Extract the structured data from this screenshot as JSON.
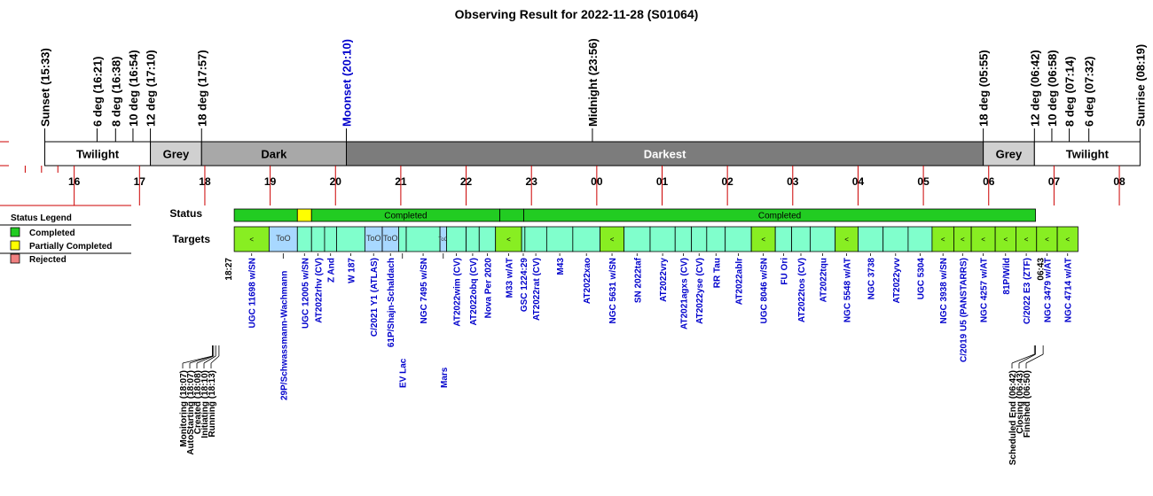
{
  "title": "Observing Result for 2022-11-28 (S01064)",
  "chart_data": {
    "type": "timeline",
    "time_axis": {
      "start": "15:00",
      "end": "08:40",
      "hour_labels": [
        "16",
        "17",
        "18",
        "19",
        "20",
        "21",
        "22",
        "23",
        "00",
        "01",
        "02",
        "03",
        "04",
        "05",
        "06",
        "07",
        "08"
      ]
    },
    "markers": [
      {
        "label": "Sunset (15:33)",
        "time": "15:33",
        "color": "#000000"
      },
      {
        "label": "6 deg (16:21)",
        "time": "16:21",
        "color": "#000000"
      },
      {
        "label": "8 deg (16:38)",
        "time": "16:38",
        "color": "#000000"
      },
      {
        "label": "10 deg (16:54)",
        "time": "16:54",
        "color": "#000000"
      },
      {
        "label": "12 deg (17:10)",
        "time": "17:10",
        "color": "#000000"
      },
      {
        "label": "18 deg (17:57)",
        "time": "17:57",
        "color": "#000000"
      },
      {
        "label": "Moonset (20:10)",
        "time": "20:10",
        "color": "#0000cc"
      },
      {
        "label": "Midnight (23:56)",
        "time": "23:56",
        "color": "#000000"
      },
      {
        "label": "18 deg (05:55)",
        "time": "29:55",
        "color": "#000000"
      },
      {
        "label": "12 deg (06:42)",
        "time": "30:42",
        "color": "#000000"
      },
      {
        "label": "10 deg (06:58)",
        "time": "30:58",
        "color": "#000000"
      },
      {
        "label": "8 deg (07:14)",
        "time": "31:14",
        "color": "#000000"
      },
      {
        "label": "6 deg (07:32)",
        "time": "31:32",
        "color": "#000000"
      },
      {
        "label": "Sunrise (08:19)",
        "time": "32:19",
        "color": "#000000"
      }
    ],
    "sky_bands": [
      {
        "label": "Twilight",
        "start": "15:33",
        "end": "17:10",
        "color": "#ffffff",
        "text_color": "#000000"
      },
      {
        "label": "Grey",
        "start": "17:10",
        "end": "17:57",
        "color": "#d0d0d0",
        "text_color": "#000000"
      },
      {
        "label": "Dark",
        "start": "17:57",
        "end": "20:10",
        "color": "#a8a8a8",
        "text_color": "#000000"
      },
      {
        "label": "Darkest",
        "start": "20:10",
        "end": "29:55",
        "color": "#7c7c7c",
        "text_color": "#ffffff"
      },
      {
        "label": "Grey",
        "start": "29:55",
        "end": "30:42",
        "color": "#d0d0d0",
        "text_color": "#000000"
      },
      {
        "label": "Twilight",
        "start": "30:42",
        "end": "32:19",
        "color": "#ffffff",
        "text_color": "#000000"
      }
    ],
    "status_row_label": "Status",
    "targets_row_label": "Targets",
    "status_segments": [
      {
        "start": "18:27",
        "end": "19:25",
        "status": "Completed",
        "label": ""
      },
      {
        "start": "19:25",
        "end": "19:38",
        "status": "Partially Completed",
        "label": ""
      },
      {
        "start": "19:38",
        "end": "22:31",
        "status": "Completed",
        "label": "Completed"
      },
      {
        "start": "22:31",
        "end": "22:53",
        "status": "Completed",
        "label": ""
      },
      {
        "start": "22:53",
        "end": "30:43",
        "status": "Completed",
        "label": "Completed"
      }
    ],
    "targets": [
      {
        "name": "UGC 11698 w/SN",
        "start": "18:27",
        "end": "18:59",
        "kind": "sn",
        "mark": "<"
      },
      {
        "name": "29P/Schwassmann-Wachmann",
        "start": "18:59",
        "end": "19:25",
        "kind": "too",
        "mark": "ToO",
        "label_pos": "low"
      },
      {
        "name": "UGC 12005 w/SN",
        "start": "19:25",
        "end": "19:38",
        "kind": "normal",
        "mark": ""
      },
      {
        "name": "AT2022rhv (CV)",
        "start": "19:38",
        "end": "19:50",
        "kind": "normal",
        "mark": ""
      },
      {
        "name": "Z And",
        "start": "19:50",
        "end": "20:01",
        "kind": "normal",
        "mark": ""
      },
      {
        "name": "W 187",
        "start": "20:01",
        "end": "20:27",
        "kind": "normal",
        "mark": ""
      },
      {
        "name": "C/2021 Y1 (ATLAS)",
        "start": "20:27",
        "end": "20:43",
        "kind": "too",
        "mark": "ToO"
      },
      {
        "name": "61P/Shajn-Schaldach",
        "start": "20:43",
        "end": "20:58",
        "kind": "too",
        "mark": "ToO"
      },
      {
        "name": "EV Lac",
        "start": "20:58",
        "end": "21:05",
        "kind": "normal",
        "mark": "",
        "label_pos": "low"
      },
      {
        "name": "NGC 7495 w/SN",
        "start": "21:05",
        "end": "21:36",
        "kind": "normal",
        "mark": ""
      },
      {
        "name": "Mars",
        "start": "21:36",
        "end": "21:42",
        "kind": "too",
        "mark": "ToO",
        "label_pos": "low"
      },
      {
        "name": "AT2022wim (CV)",
        "start": "21:42",
        "end": "22:00",
        "kind": "normal",
        "mark": ""
      },
      {
        "name": "AT2022obq (CV)",
        "start": "22:00",
        "end": "22:12",
        "kind": "normal",
        "mark": ""
      },
      {
        "name": "Nova Per 2020",
        "start": "22:12",
        "end": "22:27",
        "kind": "normal",
        "mark": ""
      },
      {
        "name": "M33 w/AT",
        "start": "22:27",
        "end": "22:51",
        "kind": "sn",
        "mark": "<"
      },
      {
        "name": "GSC 1224:29",
        "start": "22:51",
        "end": "22:54",
        "kind": "normal",
        "mark": ""
      },
      {
        "name": "AT2022rat (CV)",
        "start": "22:54",
        "end": "23:14",
        "kind": "normal",
        "mark": ""
      },
      {
        "name": "M43",
        "start": "23:14",
        "end": "23:38",
        "kind": "normal",
        "mark": ""
      },
      {
        "name": "AT2022xao",
        "start": "23:38",
        "end": "24:03",
        "kind": "normal",
        "mark": ""
      },
      {
        "name": "NGC 5631 w/SN",
        "start": "24:03",
        "end": "24:25",
        "kind": "sn",
        "mark": "<"
      },
      {
        "name": "SN 2022taf",
        "start": "24:25",
        "end": "24:49",
        "kind": "normal",
        "mark": ""
      },
      {
        "name": "AT2022vry",
        "start": "24:49",
        "end": "25:12",
        "kind": "normal",
        "mark": ""
      },
      {
        "name": "AT2021agxs (CV)",
        "start": "25:12",
        "end": "25:27",
        "kind": "normal",
        "mark": ""
      },
      {
        "name": "AT2022yse (CV)",
        "start": "25:27",
        "end": "25:41",
        "kind": "normal",
        "mark": ""
      },
      {
        "name": "RR Tau",
        "start": "25:41",
        "end": "25:58",
        "kind": "normal",
        "mark": ""
      },
      {
        "name": "AT2022ablr",
        "start": "25:58",
        "end": "26:22",
        "kind": "normal",
        "mark": ""
      },
      {
        "name": "UGC 8046 w/SN",
        "start": "26:22",
        "end": "26:44",
        "kind": "sn",
        "mark": "<"
      },
      {
        "name": "FU Ori",
        "start": "26:44",
        "end": "26:59",
        "kind": "normal",
        "mark": ""
      },
      {
        "name": "AT2022tos (CV)",
        "start": "26:59",
        "end": "27:16",
        "kind": "normal",
        "mark": ""
      },
      {
        "name": "AT2022tqu",
        "start": "27:16",
        "end": "27:39",
        "kind": "normal",
        "mark": ""
      },
      {
        "name": "NGC 5548 w/AT",
        "start": "27:39",
        "end": "28:00",
        "kind": "sn",
        "mark": "<"
      },
      {
        "name": "NGC 3738",
        "start": "28:00",
        "end": "28:23",
        "kind": "normal",
        "mark": ""
      },
      {
        "name": "AT2022yvv",
        "start": "28:23",
        "end": "28:46",
        "kind": "normal",
        "mark": ""
      },
      {
        "name": "UGC 5304",
        "start": "28:46",
        "end": "29:08",
        "kind": "normal",
        "mark": ""
      },
      {
        "name": "NGC 3938 w/SN",
        "start": "29:08",
        "end": "29:28",
        "kind": "sn",
        "mark": "<"
      },
      {
        "name": "C/2019 U5 (PANSTARRS)",
        "start": "29:28",
        "end": "29:44",
        "kind": "sn",
        "mark": "<"
      },
      {
        "name": "NGC 4257 w/AT",
        "start": "29:44",
        "end": "30:06",
        "kind": "sn",
        "mark": "<"
      },
      {
        "name": "81P/Wild",
        "start": "30:06",
        "end": "30:25",
        "kind": "sn",
        "mark": "<"
      },
      {
        "name": "C/2022 E3 (ZTF)",
        "start": "30:25",
        "end": "30:44",
        "kind": "sn",
        "mark": "<"
      },
      {
        "name": "NGC 3479 w/AT",
        "start": "30:44",
        "end": "31:03",
        "kind": "sn",
        "mark": "<"
      },
      {
        "name": "NGC 4714 w/AT",
        "start": "31:03",
        "end": "31:22",
        "kind": "sn",
        "mark": "<"
      }
    ],
    "start_time_label": "18:27",
    "end_time_label": "06:43",
    "events_start": [
      {
        "label": "Monitoring (18:07)",
        "time": "18:07"
      },
      {
        "label": "AutoStarting (18:07)",
        "time": "18:07"
      },
      {
        "label": "Created (18:08)",
        "time": "18:08"
      },
      {
        "label": "Initiating (18:10)",
        "time": "18:10"
      },
      {
        "label": "Running (18:13)",
        "time": "18:13"
      }
    ],
    "events_end": [
      {
        "label": "Scheduled End (06:42)",
        "time": "30:42"
      },
      {
        "label": "Closing (06:43)",
        "time": "30:43"
      },
      {
        "label": "Finished (06:50)",
        "time": "30:50"
      }
    ],
    "legend": {
      "title": "Status Legend",
      "items": [
        {
          "label": "Completed",
          "color": "#22cc22"
        },
        {
          "label": "Partially Completed",
          "color": "#ffff00"
        },
        {
          "label": "Rejected",
          "color": "#f08080"
        }
      ]
    },
    "colors": {
      "target_normal": "#80ffcc",
      "target_sn": "#88ee22",
      "target_too": "#a8d8ff",
      "target_label": "#0000cc",
      "axis_red": "#cc0000"
    }
  }
}
